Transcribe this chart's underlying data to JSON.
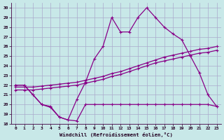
{
  "xlabel": "Windchill (Refroidissement éolien,°C)",
  "background_color": "#c8e8e8",
  "grid_color": "#aaaacc",
  "line_color": "#880088",
  "xlim": [
    -0.5,
    23.5
  ],
  "ylim": [
    18,
    30.5
  ],
  "xticks": [
    0,
    1,
    2,
    3,
    4,
    5,
    6,
    7,
    8,
    9,
    10,
    11,
    12,
    13,
    14,
    15,
    16,
    17,
    18,
    19,
    20,
    21,
    22,
    23
  ],
  "yticks": [
    18,
    19,
    20,
    21,
    22,
    23,
    24,
    25,
    26,
    27,
    28,
    29,
    30
  ],
  "line1_x": [
    0,
    1,
    2,
    3,
    4,
    5,
    6,
    7,
    8,
    9,
    10,
    11,
    12,
    13,
    14,
    15,
    16,
    17,
    18,
    19,
    20,
    21,
    22,
    23
  ],
  "line1_y": [
    22,
    22,
    21,
    20,
    19.7,
    18.7,
    18.4,
    20.5,
    22.3,
    24.7,
    26,
    29,
    27.5,
    27.5,
    29,
    30,
    29,
    28,
    27.3,
    26.7,
    25,
    23.3,
    21,
    19.8
  ],
  "line2_x": [
    0,
    1,
    2,
    3,
    4,
    5,
    6,
    7,
    8,
    9,
    10,
    11,
    12,
    13,
    14,
    15,
    16,
    17,
    18,
    19,
    20,
    21,
    22,
    23
  ],
  "line2_y": [
    21.8,
    21.8,
    21.8,
    21.9,
    22.0,
    22.1,
    22.2,
    22.3,
    22.5,
    22.7,
    22.9,
    23.2,
    23.4,
    23.7,
    24.0,
    24.3,
    24.6,
    24.9,
    25.1,
    25.3,
    25.5,
    25.7,
    25.8,
    26.0
  ],
  "line3_x": [
    0,
    1,
    2,
    3,
    4,
    5,
    6,
    7,
    8,
    9,
    10,
    11,
    12,
    13,
    14,
    15,
    16,
    17,
    18,
    19,
    20,
    21,
    22,
    23
  ],
  "line3_y": [
    21.5,
    21.5,
    21.5,
    21.6,
    21.7,
    21.8,
    21.9,
    22.0,
    22.2,
    22.4,
    22.6,
    22.9,
    23.1,
    23.4,
    23.7,
    24.0,
    24.3,
    24.5,
    24.7,
    24.9,
    25.1,
    25.3,
    25.4,
    25.6
  ],
  "line4_x": [
    0,
    1,
    2,
    3,
    4,
    5,
    6,
    7,
    8,
    9,
    10,
    11,
    12,
    13,
    14,
    15,
    16,
    17,
    18,
    19,
    20,
    21,
    22,
    23
  ],
  "line4_y": [
    22,
    22,
    21,
    20,
    19.8,
    18.7,
    18.4,
    18.3,
    20.0,
    20.0,
    20.0,
    20.0,
    20.0,
    20.0,
    20.0,
    20.0,
    20.0,
    20.0,
    20.0,
    20.0,
    20.0,
    20.0,
    20.0,
    19.8
  ]
}
